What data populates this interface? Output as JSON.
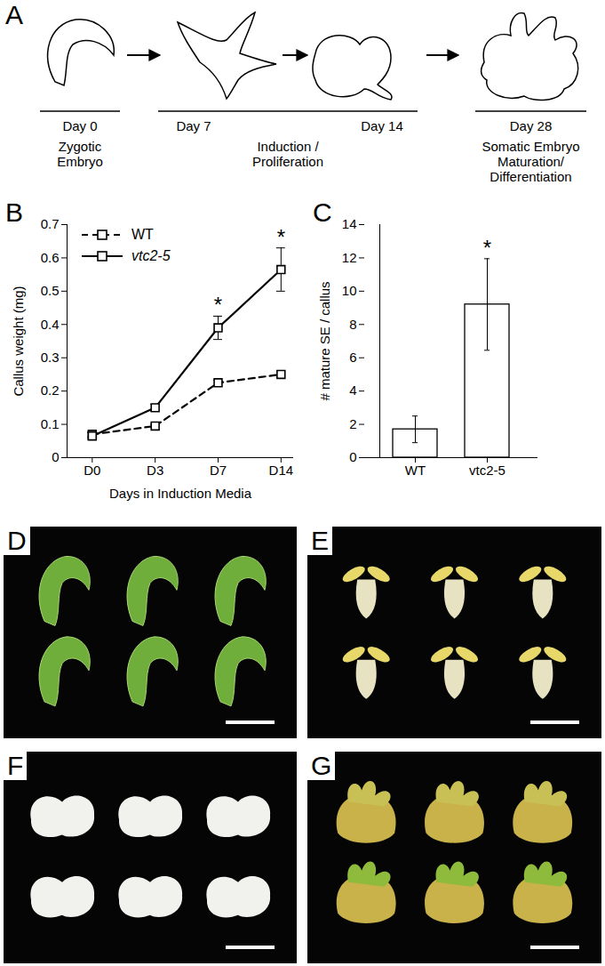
{
  "chart_data": [
    {
      "type": "line",
      "panel": "B",
      "xlabel": "Days in Induction Media",
      "ylabel": "Callus weight (mg)",
      "categories": [
        "D0",
        "D3",
        "D7",
        "D14"
      ],
      "series": [
        {
          "name": "WT",
          "color": "#000000",
          "line_style": "dashed",
          "marker": "square",
          "values": [
            0.07,
            0.095,
            0.225,
            0.25
          ],
          "errors": [
            0.008,
            0.005,
            0.008,
            0.008
          ]
        },
        {
          "name": "vtc2-5",
          "color": "#000000",
          "line_style": "solid",
          "marker": "square",
          "values": [
            0.065,
            0.15,
            0.39,
            0.565
          ],
          "errors": [
            0.01,
            0.01,
            0.035,
            0.065
          ]
        }
      ],
      "significance": [
        null,
        null,
        "*",
        "*"
      ],
      "ylim": [
        0,
        0.7
      ],
      "yticks": [
        0,
        0.1,
        0.2,
        0.3,
        0.4,
        0.5,
        0.6,
        0.7
      ],
      "legend": "upper left",
      "grid": false
    },
    {
      "type": "bar",
      "panel": "C",
      "ylabel": "# mature SE / callus",
      "categories": [
        "WT",
        "vtc2-5"
      ],
      "values": [
        1.7,
        9.2
      ],
      "errors": [
        0.8,
        2.75
      ],
      "significance": [
        null,
        "*"
      ],
      "color": "#ffffff",
      "ylim": [
        0,
        14
      ],
      "yticks": [
        0,
        2,
        4,
        6,
        8,
        10,
        12,
        14
      ],
      "grid": false
    }
  ],
  "diagram": {
    "panel": "A",
    "stages": [
      {
        "days": [
          "Day 0"
        ],
        "label": [
          "Zygotic",
          "Embryo"
        ]
      },
      {
        "days": [
          "Day 7",
          "Day 14"
        ],
        "label": [
          "Induction /",
          "Proliferation"
        ]
      },
      {
        "days": [
          "Day 28"
        ],
        "label": [
          "Somatic Embryo",
          "Maturation/",
          "Differentiation"
        ]
      }
    ]
  },
  "photos": [
    {
      "panel": "D"
    },
    {
      "panel": "E"
    },
    {
      "panel": "F"
    },
    {
      "panel": "G"
    }
  ]
}
